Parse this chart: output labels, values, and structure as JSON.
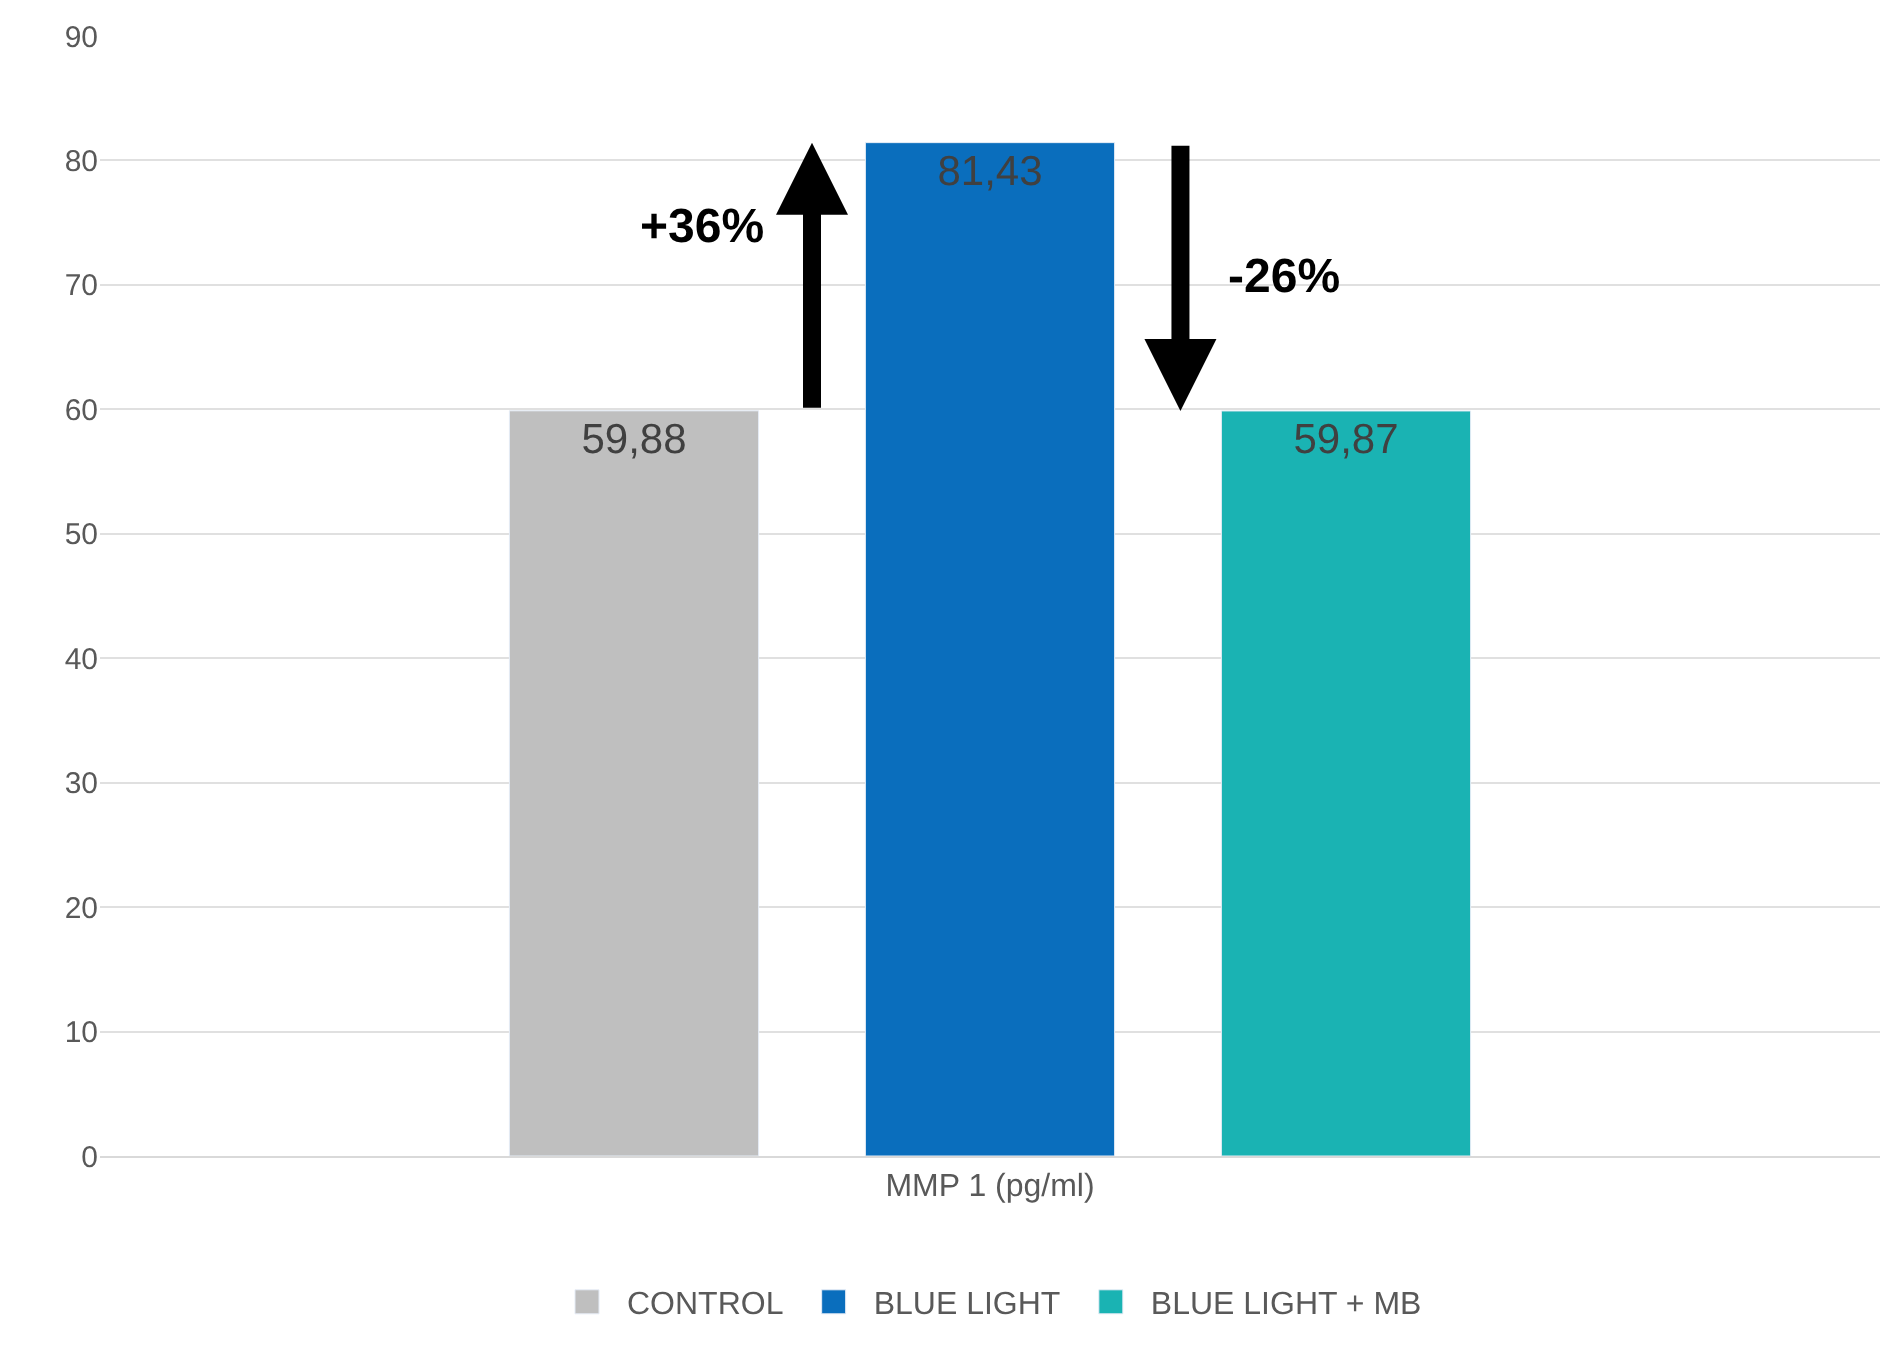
{
  "chart_data": {
    "type": "bar",
    "categories": [
      "MMP 1 (pg/ml)"
    ],
    "series": [
      {
        "name": "CONTROL",
        "color": "#bfbfbf",
        "values": [
          59.88
        ],
        "value_labels": [
          "59,88"
        ]
      },
      {
        "name": "BLUE LIGHT",
        "color": "#0a6ebd",
        "values": [
          81.43
        ],
        "value_labels": [
          "81,43"
        ]
      },
      {
        "name": "BLUE LIGHT + MB",
        "color": "#1ab3b3",
        "values": [
          59.87
        ],
        "value_labels": [
          "59,87"
        ]
      }
    ],
    "annotations": [
      "+36%",
      "-26%"
    ],
    "ylim": [
      0,
      90
    ],
    "yticks": [
      0,
      10,
      20,
      30,
      40,
      50,
      60,
      70,
      80,
      90
    ],
    "grid": "y",
    "legend": "bottom"
  }
}
